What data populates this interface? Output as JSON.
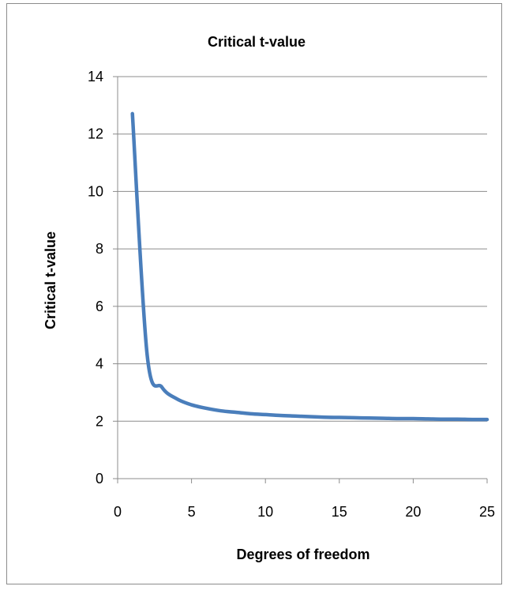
{
  "chart_data": {
    "type": "line",
    "title": "Critical t-value",
    "xlabel": "Degrees of freedom",
    "ylabel": "Critical t-value",
    "xlim": [
      0,
      25
    ],
    "ylim": [
      0,
      14
    ],
    "xticks": [
      0,
      5,
      10,
      15,
      20,
      25
    ],
    "yticks": [
      0,
      2,
      4,
      6,
      8,
      10,
      12,
      14
    ],
    "grid": "horizontal",
    "legend": "none",
    "series": [
      {
        "color": "#4a7ebb",
        "x": [
          1,
          2,
          3,
          4,
          5,
          6,
          7,
          8,
          9,
          10,
          11,
          12,
          13,
          14,
          15,
          16,
          17,
          18,
          19,
          20,
          21,
          22,
          23,
          24,
          25
        ],
        "y": [
          12.71,
          4.3,
          3.18,
          2.78,
          2.57,
          2.45,
          2.36,
          2.31,
          2.26,
          2.23,
          2.2,
          2.18,
          2.16,
          2.14,
          2.13,
          2.12,
          2.11,
          2.1,
          2.09,
          2.09,
          2.08,
          2.07,
          2.07,
          2.06,
          2.06
        ]
      }
    ]
  }
}
